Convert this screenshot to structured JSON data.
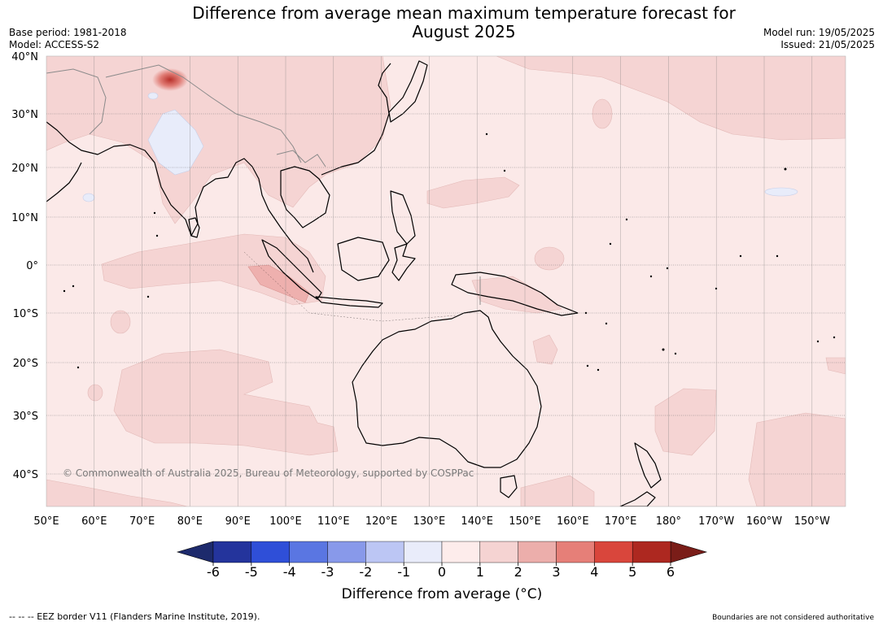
{
  "title": {
    "line1": "Difference from average mean maximum temperature forecast for",
    "line2": "August 2025"
  },
  "meta_left": {
    "base_period": "Base period: 1981-2018",
    "model": "Model: ACCESS-S2"
  },
  "meta_right": {
    "model_run": "Model run: 19/05/2025",
    "issued": "Issued: 21/05/2025"
  },
  "map": {
    "lat_labels": [
      "40°N",
      "30°N",
      "20°N",
      "10°N",
      "0°",
      "10°S",
      "20°S",
      "30°S",
      "40°S"
    ],
    "lon_labels": [
      "50°E",
      "60°E",
      "70°E",
      "80°E",
      "90°E",
      "100°E",
      "110°E",
      "120°E",
      "130°E",
      "140°E",
      "150°E",
      "160°E",
      "170°E",
      "180°",
      "170°W",
      "160°W",
      "150°W"
    ],
    "copyright": "© Commonwealth of Australia 2025, Bureau of Meteorology, supported by COSPPac",
    "background_color": "#fbe9e8",
    "anomaly_colors": {
      "0_to_1": "#fbe9e8",
      "1_to_2": "#f5d4d3",
      "2_to_3": "#eeb0ae",
      "minus1_to_0": "#e8ecfa",
      "hotspot": "#c9413a"
    }
  },
  "colorbar": {
    "ticks": [
      "-6",
      "-5",
      "-4",
      "-3",
      "-2",
      "-1",
      "0",
      "1",
      "2",
      "3",
      "4",
      "5",
      "6"
    ],
    "colors": [
      "#24349c",
      "#2f4fd8",
      "#5a76e2",
      "#8899ea",
      "#bcc6f4",
      "#e9ecfa",
      "#fdeceb",
      "#f5d3d2",
      "#ecaeab",
      "#e67f78",
      "#d9463c",
      "#ad2820"
    ],
    "under_color": "#1d2a6c",
    "over_color": "#7a1d18",
    "label": "Difference from average (°C)"
  },
  "footer": {
    "left": "--  --  -- EEZ border V11 (Flanders Marine Institute, 2019).",
    "right": "Boundaries are not considered authoritative"
  }
}
